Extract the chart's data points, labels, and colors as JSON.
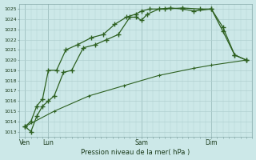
{
  "title": "Pression niveau de la mer( hPa )",
  "bg_color": "#cce8e8",
  "grid_color": "#b0d0d0",
  "line_color": "#2d6020",
  "ylim": [
    1012.5,
    1025.5
  ],
  "yticks": [
    1013,
    1014,
    1015,
    1016,
    1017,
    1018,
    1019,
    1020,
    1021,
    1022,
    1023,
    1024,
    1025
  ],
  "xlim": [
    0,
    20
  ],
  "xtick_labels": [
    "Ven",
    "Lun",
    "Sam",
    "Dim"
  ],
  "xtick_positions": [
    0.5,
    2.5,
    10.5,
    16.5
  ],
  "vline_positions": [
    0.5,
    2.5,
    10.5,
    16.5
  ],
  "series1": {
    "x": [
      0.5,
      1.0,
      1.5,
      2.0,
      2.5,
      3.0,
      3.8,
      4.5,
      5.5,
      6.5,
      7.5,
      8.5,
      9.5,
      10.0,
      10.5,
      11.0,
      12.0,
      13.0,
      14.0,
      15.0,
      16.5,
      17.5,
      18.5,
      19.5
    ],
    "y": [
      1013.5,
      1013.0,
      1014.5,
      1015.5,
      1016.0,
      1016.5,
      1018.8,
      1019.0,
      1021.2,
      1021.5,
      1022.0,
      1022.5,
      1024.2,
      1024.2,
      1023.9,
      1024.5,
      1025.0,
      1025.1,
      1025.0,
      1024.8,
      1025.0,
      1022.8,
      1020.5,
      1020.0
    ]
  },
  "series2": {
    "x": [
      0.5,
      1.0,
      1.5,
      2.0,
      2.5,
      3.2,
      4.0,
      5.0,
      6.2,
      7.2,
      8.2,
      9.2,
      10.0,
      10.5,
      11.2,
      12.5,
      14.0,
      15.5,
      16.5,
      17.5,
      18.5,
      19.5
    ],
    "y": [
      1013.5,
      1014.0,
      1015.5,
      1016.2,
      1019.0,
      1019.0,
      1021.0,
      1021.5,
      1022.2,
      1022.5,
      1023.5,
      1024.2,
      1024.5,
      1024.8,
      1025.0,
      1025.0,
      1025.1,
      1025.0,
      1025.0,
      1023.2,
      1020.5,
      1020.0
    ]
  },
  "series3": {
    "x": [
      0.5,
      3.0,
      6.0,
      9.0,
      12.0,
      15.0,
      16.5,
      19.5
    ],
    "y": [
      1013.5,
      1015.0,
      1016.5,
      1017.5,
      1018.5,
      1019.2,
      1019.5,
      1020.0
    ]
  }
}
